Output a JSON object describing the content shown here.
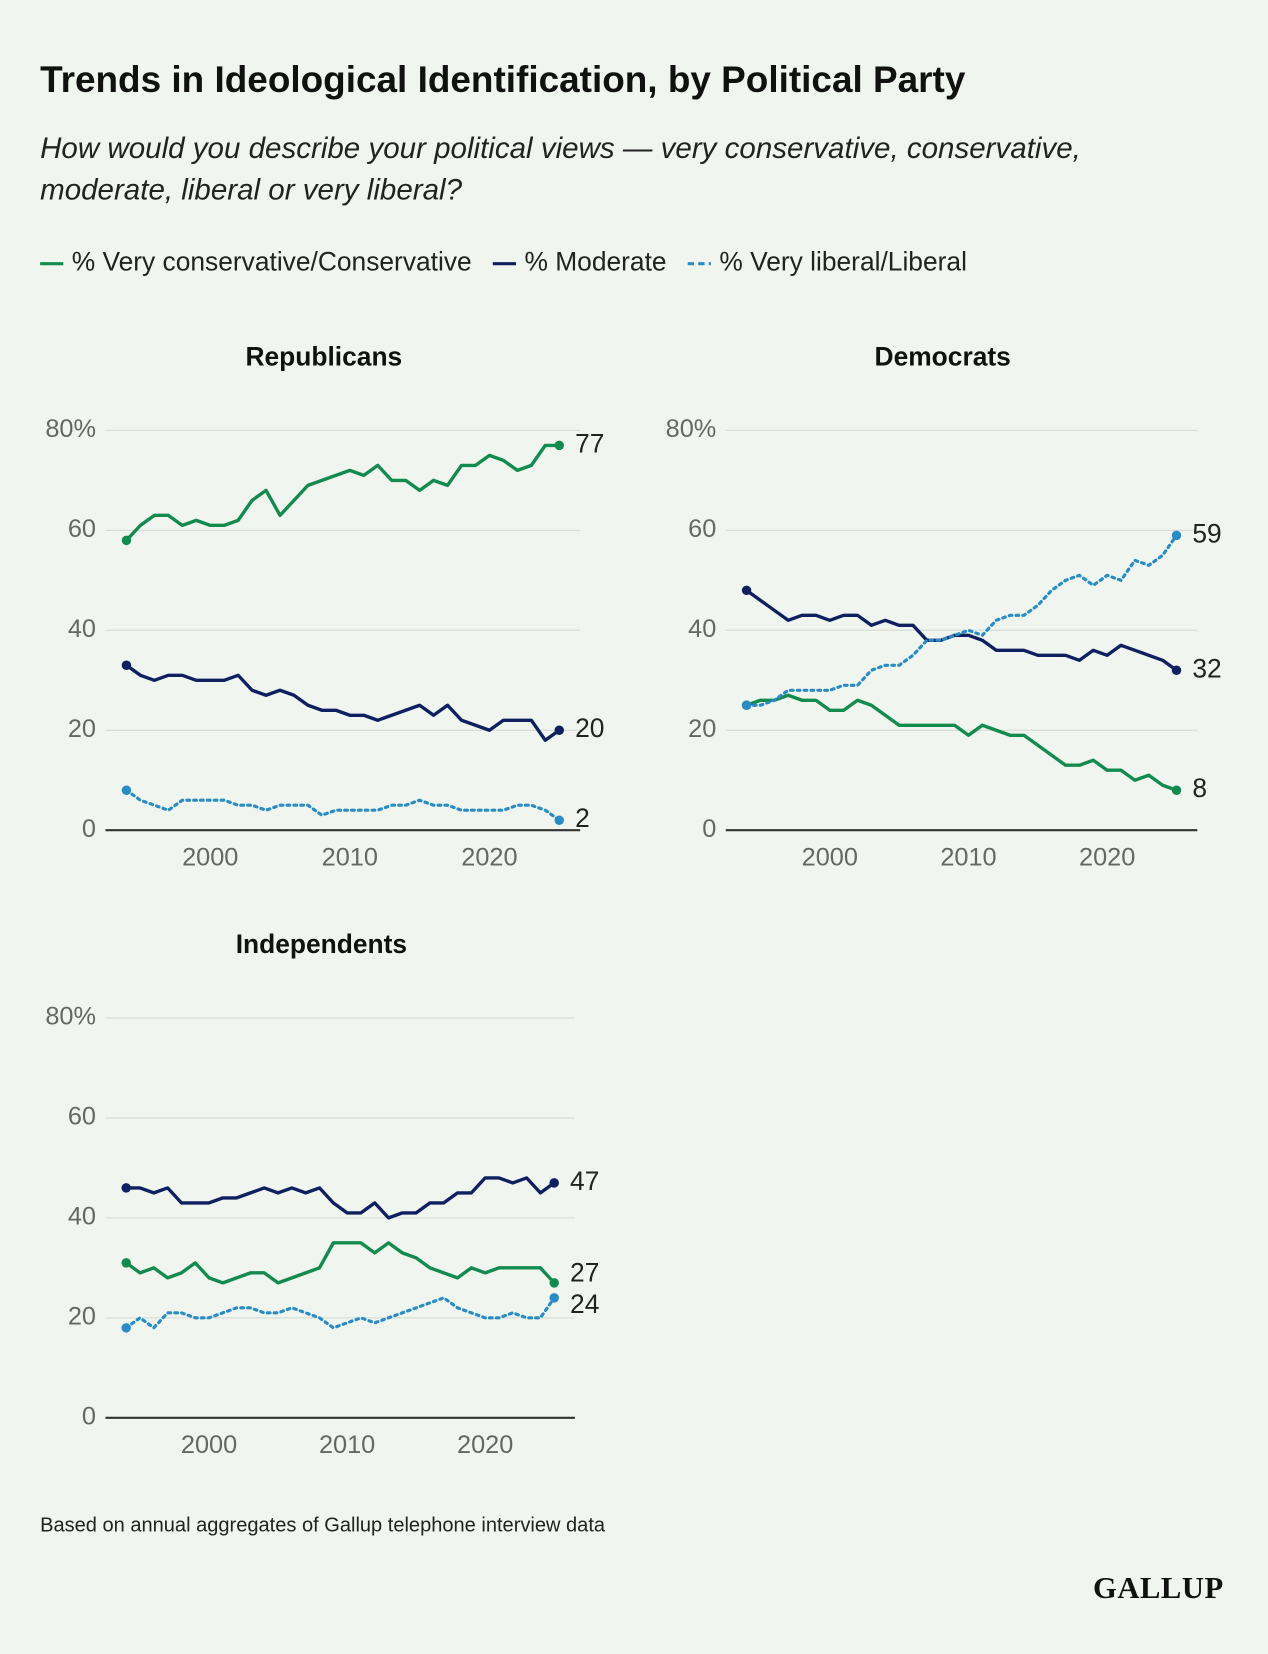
{
  "title": "Trends in Ideological Identification, by Political Party",
  "subtitle": "How would you describe your political views — very conservative, conservative, moderate, liberal or very liberal?",
  "note": "Based on annual aggregates of Gallup telephone interview data",
  "logo": "GALLUP",
  "chart_data": [
    {
      "type": "line",
      "title": "Republicans",
      "x": [
        1994,
        1995,
        1996,
        1997,
        1998,
        1999,
        2000,
        2001,
        2002,
        2003,
        2004,
        2005,
        2006,
        2007,
        2008,
        2009,
        2010,
        2011,
        2012,
        2013,
        2014,
        2015,
        2016,
        2017,
        2018,
        2019,
        2020,
        2021,
        2022,
        2023,
        2024,
        2025
      ],
      "xlim": [
        1992.5,
        2026.5
      ],
      "xticks": [
        2000,
        2010,
        2020
      ],
      "ylim": [
        0,
        80
      ],
      "yticks": [
        0,
        20,
        40,
        60,
        {
          "value": 80,
          "label": "80%"
        }
      ],
      "grid": true,
      "series": [
        {
          "name": "% Very conservative/Conservative",
          "color": "#138a4e",
          "style": "solid",
          "values": [
            58,
            61,
            63,
            63,
            61,
            62,
            61,
            61,
            62,
            66,
            68,
            63,
            66,
            69,
            70,
            71,
            72,
            71,
            73,
            70,
            70,
            68,
            70,
            69,
            73,
            73,
            75,
            74,
            72,
            73,
            77,
            77
          ]
        },
        {
          "name": "% Moderate",
          "color": "#0f2060",
          "style": "solid",
          "values": [
            33,
            31,
            30,
            31,
            31,
            30,
            30,
            30,
            31,
            28,
            27,
            28,
            27,
            25,
            24,
            24,
            23,
            23,
            22,
            23,
            24,
            25,
            23,
            25,
            22,
            21,
            20,
            22,
            22,
            22,
            18,
            20
          ]
        },
        {
          "name": "% Very liberal/Liberal",
          "color": "#2a8cc4",
          "style": "dotted",
          "values": [
            8,
            6,
            5,
            4,
            6,
            6,
            6,
            6,
            5,
            5,
            4,
            5,
            5,
            5,
            3,
            4,
            4,
            4,
            4,
            5,
            5,
            6,
            5,
            5,
            4,
            4,
            4,
            4,
            5,
            5,
            4,
            2
          ]
        }
      ]
    },
    {
      "type": "line",
      "title": "Democrats",
      "x": [
        1994,
        1995,
        1996,
        1997,
        1998,
        1999,
        2000,
        2001,
        2002,
        2003,
        2004,
        2005,
        2006,
        2007,
        2008,
        2009,
        2010,
        2011,
        2012,
        2013,
        2014,
        2015,
        2016,
        2017,
        2018,
        2019,
        2020,
        2021,
        2022,
        2023,
        2024,
        2025
      ],
      "xlim": [
        1992.5,
        2026.5
      ],
      "xticks": [
        2000,
        2010,
        2020
      ],
      "ylim": [
        0,
        80
      ],
      "yticks": [
        0,
        20,
        40,
        60,
        {
          "value": 80,
          "label": "80%"
        }
      ],
      "grid": true,
      "series": [
        {
          "color": "#138a4e",
          "style": "solid",
          "values": [
            25,
            26,
            26,
            27,
            26,
            26,
            24,
            24,
            26,
            25,
            23,
            21,
            21,
            21,
            21,
            21,
            19,
            21,
            20,
            19,
            19,
            17,
            15,
            13,
            13,
            14,
            12,
            12,
            10,
            11,
            9,
            8
          ]
        },
        {
          "color": "#0f2060",
          "style": "solid",
          "values": [
            48,
            46,
            44,
            42,
            43,
            43,
            42,
            43,
            43,
            41,
            42,
            41,
            41,
            38,
            38,
            39,
            39,
            38,
            36,
            36,
            36,
            35,
            35,
            35,
            34,
            36,
            35,
            37,
            36,
            35,
            34,
            32
          ]
        },
        {
          "color": "#2a8cc4",
          "style": "dotted",
          "values": [
            25,
            25,
            26,
            28,
            28,
            28,
            28,
            29,
            29,
            32,
            33,
            33,
            35,
            38,
            38,
            39,
            40,
            39,
            42,
            43,
            43,
            45,
            48,
            50,
            51,
            49,
            51,
            50,
            54,
            53,
            55,
            59
          ]
        }
      ]
    },
    {
      "type": "line",
      "title": "Independents",
      "x": [
        1994,
        1995,
        1996,
        1997,
        1998,
        1999,
        2000,
        2001,
        2002,
        2003,
        2004,
        2005,
        2006,
        2007,
        2008,
        2009,
        2010,
        2011,
        2012,
        2013,
        2014,
        2015,
        2016,
        2017,
        2018,
        2019,
        2020,
        2021,
        2022,
        2023,
        2024,
        2025
      ],
      "xlim": [
        1992.5,
        2026.5
      ],
      "xticks": [
        2000,
        2010,
        2020
      ],
      "ylim": [
        0,
        80
      ],
      "yticks": [
        0,
        20,
        40,
        60,
        {
          "value": 80,
          "label": "80%"
        }
      ],
      "grid": true,
      "series": [
        {
          "color": "#138a4e",
          "style": "solid",
          "values": [
            31,
            29,
            30,
            28,
            29,
            31,
            28,
            27,
            28,
            29,
            29,
            27,
            28,
            29,
            30,
            35,
            35,
            35,
            33,
            35,
            33,
            32,
            30,
            29,
            28,
            30,
            29,
            30,
            30,
            30,
            30,
            27
          ]
        },
        {
          "color": "#0f2060",
          "style": "solid",
          "values": [
            46,
            46,
            45,
            46,
            43,
            43,
            43,
            44,
            44,
            45,
            46,
            45,
            46,
            45,
            46,
            43,
            41,
            41,
            43,
            40,
            41,
            41,
            43,
            43,
            45,
            45,
            48,
            48,
            47,
            48,
            45,
            47
          ]
        },
        {
          "color": "#2a8cc4",
          "style": "dotted",
          "values": [
            18,
            20,
            18,
            21,
            21,
            20,
            20,
            21,
            22,
            22,
            21,
            21,
            22,
            21,
            20,
            18,
            19,
            20,
            19,
            20,
            21,
            22,
            23,
            24,
            22,
            21,
            20,
            20,
            21,
            20,
            20,
            24
          ]
        }
      ]
    }
  ]
}
